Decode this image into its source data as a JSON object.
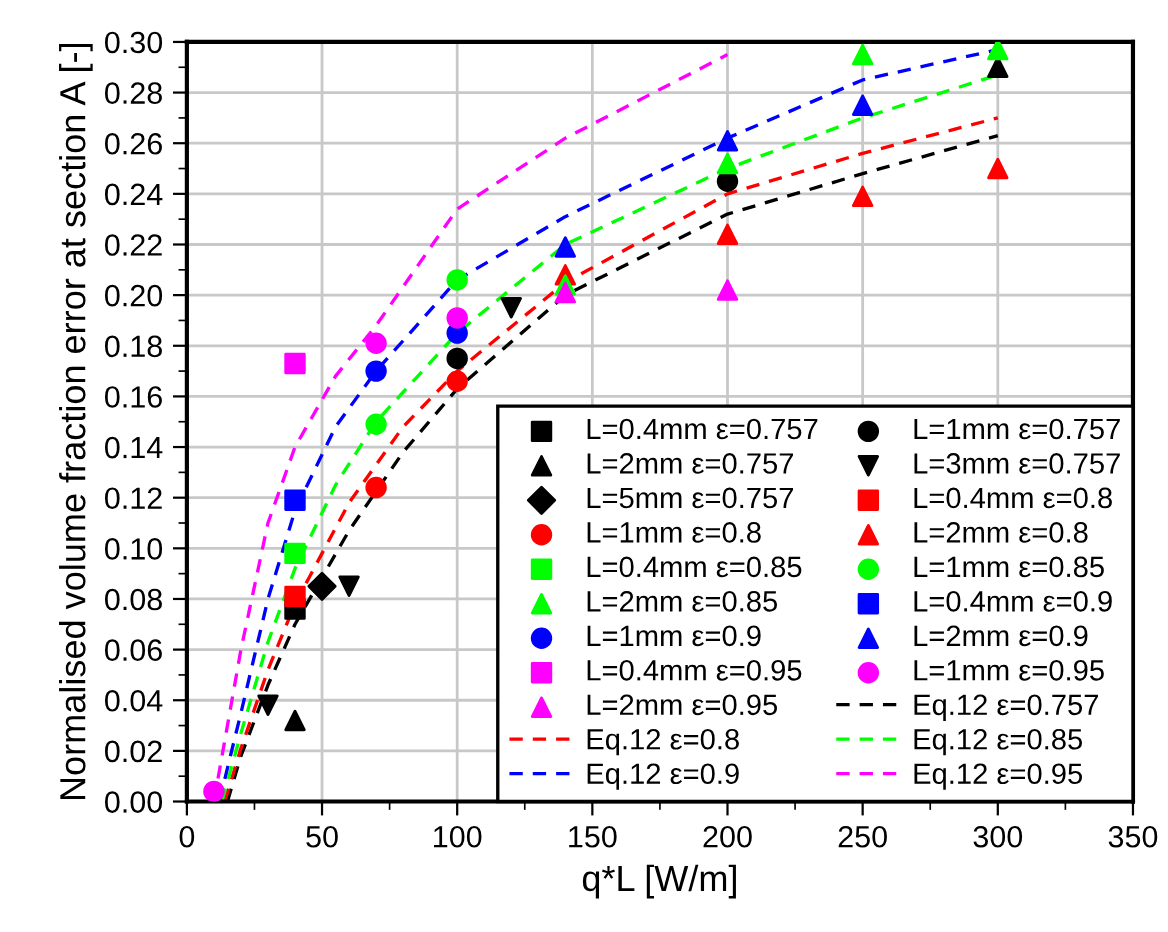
{
  "chart_data": {
    "type": "scatter",
    "xlabel": "q*L [W/m]",
    "ylabel": "Normalised volume fraction error at section A [-]",
    "xlim": [
      0,
      350
    ],
    "ylim": [
      0,
      0.3
    ],
    "xticks": [
      0,
      50,
      100,
      150,
      200,
      250,
      300,
      350
    ],
    "yticks": [
      {
        "value": 0,
        "label": "0.00"
      },
      {
        "value": 0.02,
        "label": "0.02"
      },
      {
        "value": 0.04,
        "label": "0.04"
      },
      {
        "value": 0.06,
        "label": "0.06"
      },
      {
        "value": 0.08,
        "label": "0.08"
      },
      {
        "value": 0.1,
        "label": "0.10"
      },
      {
        "value": 0.12,
        "label": "0.12"
      },
      {
        "value": 0.14,
        "label": "0.14"
      },
      {
        "value": 0.16,
        "label": "0.16"
      },
      {
        "value": 0.18,
        "label": "0.18"
      },
      {
        "value": 0.2,
        "label": "0.20"
      },
      {
        "value": 0.22,
        "label": "0.22"
      },
      {
        "value": 0.24,
        "label": "0.24"
      },
      {
        "value": 0.26,
        "label": "0.26"
      },
      {
        "value": 0.28,
        "label": "0.28"
      },
      {
        "value": 0.3,
        "label": "0.30"
      }
    ],
    "grid": true,
    "legend": "bottom right",
    "series": [
      {
        "name": "L=0.4mm ε=0.757",
        "color": "#000000",
        "marker": "square",
        "x": [
          40
        ],
        "values": [
          0.076
        ]
      },
      {
        "name": "L=1mm ε=0.757",
        "color": "#000000",
        "marker": "circle",
        "x": [
          100,
          200
        ],
        "values": [
          0.175,
          0.245
        ]
      },
      {
        "name": "L=2mm ε=0.757",
        "color": "#000000",
        "marker": "triangle",
        "x": [
          40,
          300
        ],
        "values": [
          0.032,
          0.29
        ]
      },
      {
        "name": "L=3mm ε=0.757",
        "color": "#000000",
        "marker": "triangle_down",
        "x": [
          30,
          60,
          120
        ],
        "values": [
          0.038,
          0.085,
          0.195
        ]
      },
      {
        "name": "L=5mm ε=0.757",
        "color": "#000000",
        "marker": "diamond",
        "x": [
          50
        ],
        "values": [
          0.085
        ]
      },
      {
        "name": "L=0.4mm ε=0.8",
        "color": "#ff0000",
        "marker": "square",
        "x": [
          40
        ],
        "values": [
          0.081
        ]
      },
      {
        "name": "L=1mm ε=0.8",
        "color": "#ff0000",
        "marker": "circle",
        "x": [
          70,
          100
        ],
        "values": [
          0.124,
          0.166
        ]
      },
      {
        "name": "L=2mm ε=0.8",
        "color": "#ff0000",
        "marker": "triangle",
        "x": [
          140,
          200,
          250,
          300
        ],
        "values": [
          0.208,
          0.224,
          0.239,
          0.25
        ]
      },
      {
        "name": "L=0.4mm ε=0.85",
        "color": "#00ff00",
        "marker": "square",
        "x": [
          40
        ],
        "values": [
          0.098
        ]
      },
      {
        "name": "L=1mm ε=0.85",
        "color": "#00ff00",
        "marker": "circle",
        "x": [
          70,
          100
        ],
        "values": [
          0.149,
          0.206
        ]
      },
      {
        "name": "L=2mm ε=0.85",
        "color": "#00ff00",
        "marker": "triangle",
        "x": [
          140,
          200,
          250,
          300
        ],
        "values": [
          0.204,
          0.252,
          0.295,
          0.297
        ]
      },
      {
        "name": "L=0.4mm ε=0.9",
        "color": "#0000ff",
        "marker": "square",
        "x": [
          40
        ],
        "values": [
          0.119
        ]
      },
      {
        "name": "L=1mm ε=0.9",
        "color": "#0000ff",
        "marker": "circle",
        "x": [
          70,
          100
        ],
        "values": [
          0.17,
          0.185
        ]
      },
      {
        "name": "L=2mm ε=0.9",
        "color": "#0000ff",
        "marker": "triangle",
        "x": [
          140,
          200,
          250
        ],
        "values": [
          0.219,
          0.261,
          0.275
        ]
      },
      {
        "name": "L=0.4mm ε=0.95",
        "color": "#ff00ff",
        "marker": "square",
        "x": [
          40
        ],
        "values": [
          0.173
        ]
      },
      {
        "name": "L=1mm ε=0.95",
        "color": "#ff00ff",
        "marker": "circle",
        "x": [
          10,
          70,
          100
        ],
        "values": [
          0.004,
          0.181,
          0.191
        ]
      },
      {
        "name": "L=2mm ε=0.95",
        "color": "#ff00ff",
        "marker": "triangle",
        "x": [
          140,
          200
        ],
        "values": [
          0.201,
          0.202
        ]
      },
      {
        "name": "Eq.12 ε=0.757",
        "type": "line",
        "line_style": "dashed",
        "color": "#000000",
        "x": [
          15,
          20,
          30,
          40,
          60,
          80,
          100,
          140,
          200,
          250,
          300
        ],
        "values": [
          0,
          0.018,
          0.046,
          0.07,
          0.107,
          0.138,
          0.163,
          0.2,
          0.232,
          0.248,
          0.263
        ]
      },
      {
        "name": "Eq.12 ε=0.8",
        "type": "line",
        "line_style": "dashed",
        "color": "#ff0000",
        "x": [
          14,
          20,
          30,
          40,
          60,
          80,
          100,
          140,
          200,
          250,
          300
        ],
        "values": [
          0,
          0.021,
          0.052,
          0.078,
          0.118,
          0.148,
          0.17,
          0.205,
          0.24,
          0.256,
          0.27
        ]
      },
      {
        "name": "Eq.12 ε=0.85",
        "type": "line",
        "line_style": "dashed",
        "color": "#00ff00",
        "x": [
          13,
          20,
          30,
          40,
          55,
          70,
          100,
          140,
          200,
          250,
          300
        ],
        "values": [
          0,
          0.027,
          0.063,
          0.092,
          0.125,
          0.15,
          0.185,
          0.22,
          0.25,
          0.27,
          0.287
        ]
      },
      {
        "name": "Eq.12 ε=0.9",
        "type": "line",
        "line_style": "dashed",
        "color": "#0000ff",
        "x": [
          12,
          20,
          30,
          40,
          55,
          70,
          100,
          140,
          200,
          250,
          300
        ],
        "values": [
          0,
          0.035,
          0.08,
          0.115,
          0.148,
          0.17,
          0.206,
          0.231,
          0.262,
          0.285,
          0.297
        ]
      },
      {
        "name": "Eq.12 ε=0.95",
        "type": "line",
        "line_style": "dashed",
        "color": "#ff00ff",
        "x": [
          10,
          20,
          30,
          40,
          55,
          70,
          100,
          140,
          200
        ],
        "values": [
          0,
          0.06,
          0.11,
          0.14,
          0.168,
          0.188,
          0.234,
          0.262,
          0.295
        ]
      }
    ]
  }
}
